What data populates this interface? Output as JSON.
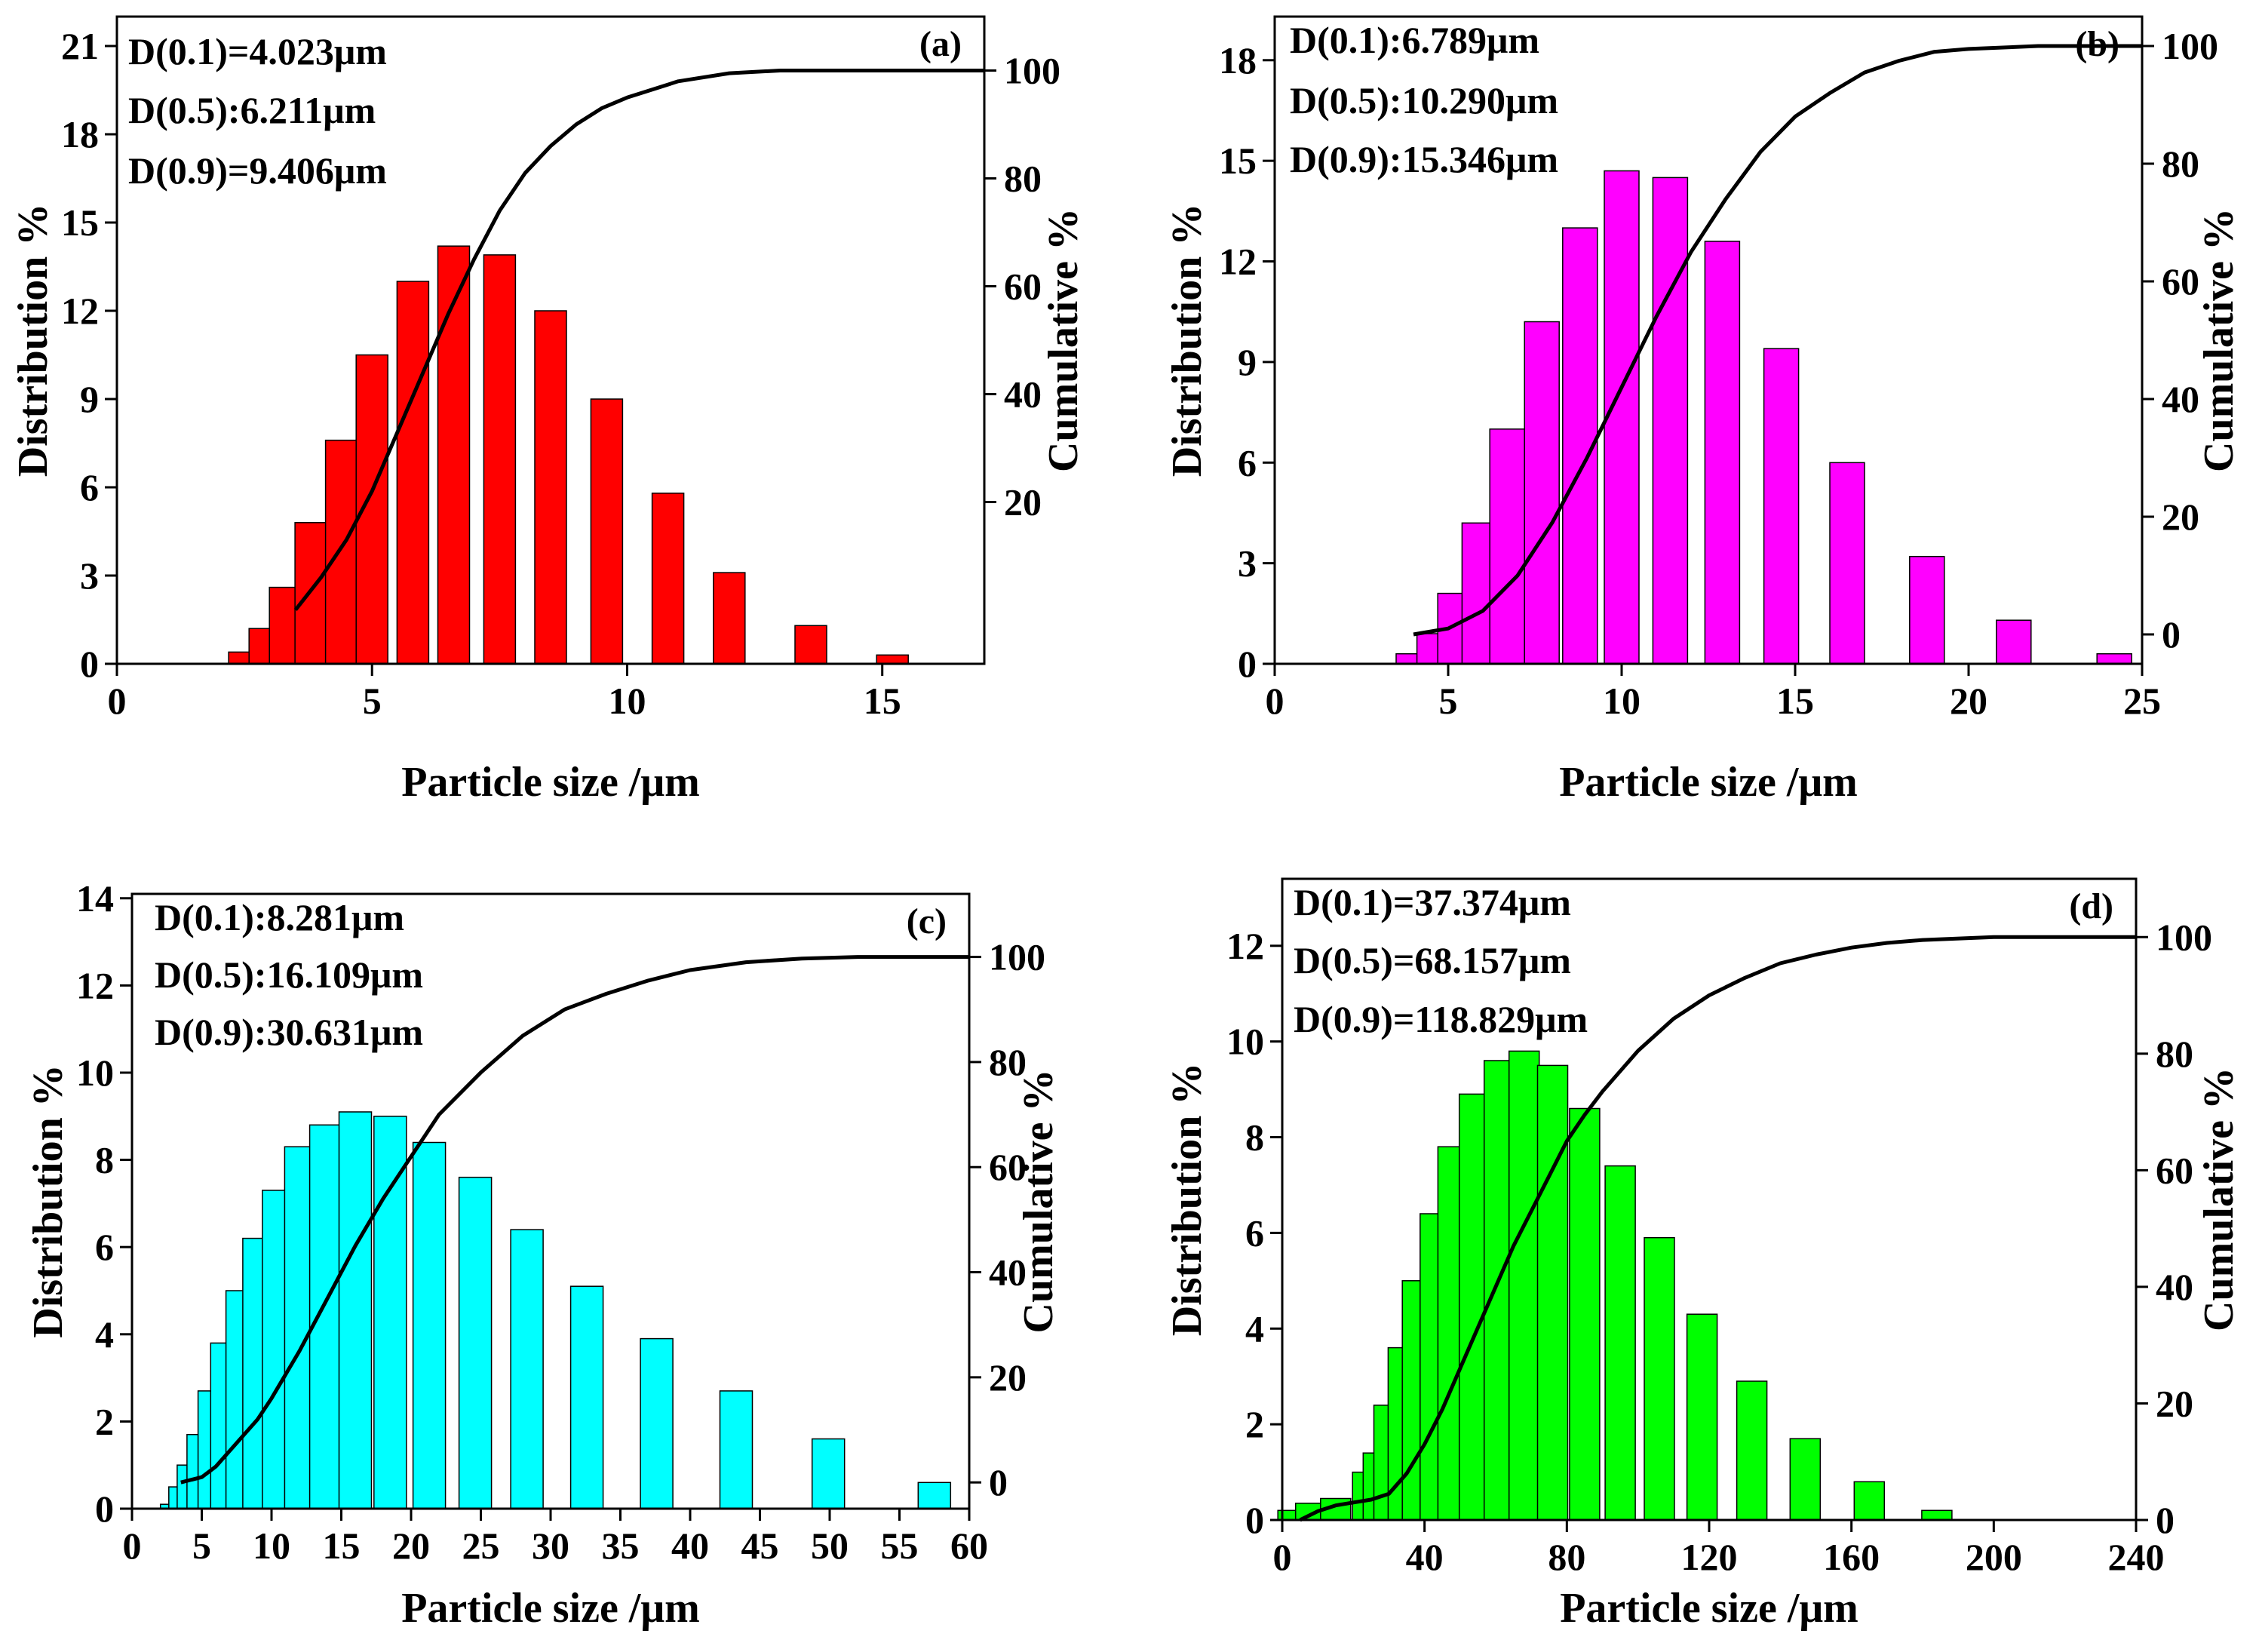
{
  "chart_data": [
    {
      "type": "bar",
      "panel_label": "(a)",
      "annotations": [
        "D(0.1)=4.023μm",
        "D(0.5):6.211μm",
        "D(0.9)=9.406μm"
      ],
      "xlabel": "Particle size /μm",
      "ylabel": "Distribution %",
      "y2label": "Cumulative %",
      "xlim": [
        0,
        17
      ],
      "ylim": [
        0,
        22
      ],
      "y2lim": [
        -10,
        110
      ],
      "xticks": [
        0,
        5,
        10,
        15
      ],
      "yticks": [
        0,
        3,
        6,
        9,
        12,
        15,
        18,
        21
      ],
      "y2ticks": [
        20,
        40,
        60,
        80,
        100
      ],
      "bar_color": "#ff0000",
      "bars": [
        {
          "x": 2.5,
          "value": 0.4
        },
        {
          "x": 2.9,
          "value": 1.2
        },
        {
          "x": 3.3,
          "value": 2.6
        },
        {
          "x": 3.8,
          "value": 4.8
        },
        {
          "x": 4.4,
          "value": 7.6
        },
        {
          "x": 5.0,
          "value": 10.5
        },
        {
          "x": 5.8,
          "value": 13.0
        },
        {
          "x": 6.6,
          "value": 14.2
        },
        {
          "x": 7.5,
          "value": 13.9
        },
        {
          "x": 8.5,
          "value": 12.0
        },
        {
          "x": 9.6,
          "value": 9.0
        },
        {
          "x": 10.8,
          "value": 5.8
        },
        {
          "x": 12.0,
          "value": 3.1
        },
        {
          "x": 13.6,
          "value": 1.3
        },
        {
          "x": 15.2,
          "value": 0.3
        }
      ],
      "cumulative": {
        "x": [
          3.5,
          4.0,
          4.5,
          5.0,
          5.5,
          6.0,
          6.5,
          7.0,
          7.5,
          8.0,
          8.5,
          9.0,
          9.5,
          10.0,
          11.0,
          12.0,
          13.0,
          14.0,
          15.0,
          16.0,
          17.0
        ],
        "y": [
          0,
          6,
          13,
          22,
          33,
          44,
          55,
          65,
          74,
          81,
          86,
          90,
          93,
          95,
          98,
          99.5,
          100,
          100,
          100,
          100,
          100
        ]
      }
    },
    {
      "type": "bar",
      "panel_label": "(b)",
      "annotations": [
        "D(0.1):6.789μm",
        "D(0.5):10.290μm",
        "D(0.9):15.346μm"
      ],
      "xlabel": "Particle size /μm",
      "ylabel": "Distribution %",
      "y2label": "Cumulative %",
      "xlim": [
        0,
        25
      ],
      "ylim": [
        0,
        19.3
      ],
      "y2lim": [
        -5,
        105
      ],
      "xticks": [
        0,
        5,
        10,
        15,
        20,
        25
      ],
      "yticks": [
        0,
        3,
        6,
        9,
        12,
        15,
        18
      ],
      "y2ticks": [
        0,
        20,
        40,
        60,
        80,
        100
      ],
      "bar_color": "#ff00ff",
      "bars": [
        {
          "x": 4.0,
          "value": 0.3
        },
        {
          "x": 4.6,
          "value": 0.9
        },
        {
          "x": 5.2,
          "value": 2.1
        },
        {
          "x": 5.9,
          "value": 4.2
        },
        {
          "x": 6.7,
          "value": 7.0
        },
        {
          "x": 7.7,
          "value": 10.2
        },
        {
          "x": 8.8,
          "value": 13.0
        },
        {
          "x": 10.0,
          "value": 14.7
        },
        {
          "x": 11.4,
          "value": 14.5
        },
        {
          "x": 12.9,
          "value": 12.6
        },
        {
          "x": 14.6,
          "value": 9.4
        },
        {
          "x": 16.5,
          "value": 6.0
        },
        {
          "x": 18.8,
          "value": 3.2
        },
        {
          "x": 21.3,
          "value": 1.3
        },
        {
          "x": 24.2,
          "value": 0.3
        }
      ],
      "cumulative": {
        "x": [
          4,
          5,
          6,
          7,
          8,
          9,
          10,
          11,
          12,
          13,
          14,
          15,
          16,
          17,
          18,
          19,
          20,
          22,
          25
        ],
        "y": [
          0,
          1,
          4,
          10,
          19,
          30,
          42,
          54,
          65,
          74,
          82,
          88,
          92,
          95.5,
          97.5,
          99,
          99.5,
          100,
          100
        ]
      }
    },
    {
      "type": "bar",
      "panel_label": "(c)",
      "annotations": [
        "D(0.1):8.281μm",
        "D(0.5):16.109μm",
        "D(0.9):30.631μm"
      ],
      "xlabel": "Particle size /μm",
      "ylabel": "Distribution %",
      "y2label": "Cumulative %",
      "xlim": [
        0,
        60
      ],
      "ylim": [
        0,
        14.1
      ],
      "y2lim": [
        -5,
        112
      ],
      "xticks": [
        0,
        5,
        10,
        15,
        20,
        25,
        30,
        35,
        40,
        45,
        50,
        55,
        60
      ],
      "yticks": [
        0,
        2,
        4,
        6,
        8,
        10,
        12,
        14
      ],
      "y2ticks": [
        0,
        20,
        40,
        60,
        80,
        100
      ],
      "bar_color": "#00ffff",
      "bars": [
        {
          "x": 3.2,
          "value": 0.1
        },
        {
          "x": 3.8,
          "value": 0.5
        },
        {
          "x": 4.4,
          "value": 1.0
        },
        {
          "x": 5.1,
          "value": 1.7
        },
        {
          "x": 5.9,
          "value": 2.7
        },
        {
          "x": 6.8,
          "value": 3.8
        },
        {
          "x": 7.9,
          "value": 5.0
        },
        {
          "x": 9.1,
          "value": 6.2
        },
        {
          "x": 10.5,
          "value": 7.3
        },
        {
          "x": 12.1,
          "value": 8.3
        },
        {
          "x": 13.9,
          "value": 8.8
        },
        {
          "x": 16.0,
          "value": 9.1
        },
        {
          "x": 18.5,
          "value": 9.0
        },
        {
          "x": 21.3,
          "value": 8.4
        },
        {
          "x": 24.6,
          "value": 7.6
        },
        {
          "x": 28.3,
          "value": 6.4
        },
        {
          "x": 32.6,
          "value": 5.1
        },
        {
          "x": 37.6,
          "value": 3.9
        },
        {
          "x": 43.3,
          "value": 2.7
        },
        {
          "x": 49.9,
          "value": 1.6
        },
        {
          "x": 57.5,
          "value": 0.6
        }
      ],
      "cumulative": {
        "x": [
          3.5,
          5,
          6,
          7,
          8,
          9,
          10,
          12,
          14,
          16,
          18,
          20,
          22,
          25,
          28,
          31,
          34,
          37,
          40,
          44,
          48,
          52,
          56,
          60
        ],
        "y": [
          0,
          1,
          3,
          6,
          9,
          12,
          16,
          25,
          35,
          45,
          54,
          62,
          70,
          78,
          85,
          90,
          93,
          95.5,
          97.5,
          99,
          99.7,
          100,
          100,
          100
        ]
      }
    },
    {
      "type": "bar",
      "panel_label": "(d)",
      "annotations": [
        "D(0.1)=37.374μm",
        "D(0.5)=68.157μm",
        "D(0.9)=118.829μm"
      ],
      "xlabel": "Particle size /μm",
      "ylabel": "Distribution %",
      "y2label": "Cumulative %",
      "xlim": [
        0,
        240
      ],
      "ylim": [
        0,
        13.4
      ],
      "y2lim": [
        0,
        110
      ],
      "xticks": [
        0,
        40,
        80,
        120,
        160,
        200,
        240
      ],
      "yticks": [
        0,
        2,
        4,
        6,
        8,
        10,
        12
      ],
      "y2ticks": [
        0,
        20,
        40,
        60,
        80,
        100
      ],
      "bar_color": "#00ff00",
      "bars": [
        {
          "x": 3,
          "value": 0.2
        },
        {
          "x": 8,
          "value": 0.35
        },
        {
          "x": 15,
          "value": 0.45
        },
        {
          "x": 24,
          "value": 1.0
        },
        {
          "x": 27,
          "value": 1.4
        },
        {
          "x": 30,
          "value": 2.4
        },
        {
          "x": 34,
          "value": 3.6
        },
        {
          "x": 38,
          "value": 5.0
        },
        {
          "x": 43,
          "value": 6.4
        },
        {
          "x": 48,
          "value": 7.8
        },
        {
          "x": 54,
          "value": 8.9
        },
        {
          "x": 61,
          "value": 9.6
        },
        {
          "x": 68,
          "value": 9.8
        },
        {
          "x": 76,
          "value": 9.5
        },
        {
          "x": 85,
          "value": 8.6
        },
        {
          "x": 95,
          "value": 7.4
        },
        {
          "x": 106,
          "value": 5.9
        },
        {
          "x": 118,
          "value": 4.3
        },
        {
          "x": 132,
          "value": 2.9
        },
        {
          "x": 147,
          "value": 1.7
        },
        {
          "x": 165,
          "value": 0.8
        },
        {
          "x": 184,
          "value": 0.2
        }
      ],
      "cumulative": {
        "x": [
          5,
          10,
          15,
          20,
          25,
          30,
          35,
          40,
          45,
          50,
          55,
          60,
          65,
          70,
          75,
          80,
          85,
          90,
          100,
          110,
          120,
          130,
          140,
          150,
          160,
          170,
          180,
          200,
          240
        ],
        "y": [
          0,
          1.5,
          2.5,
          3,
          3.5,
          4.5,
          8,
          13,
          19,
          26,
          33,
          40,
          47,
          53,
          59,
          65,
          69.5,
          73.5,
          80.5,
          86,
          90,
          93,
          95.5,
          97,
          98.2,
          99,
          99.5,
          100,
          100
        ]
      }
    }
  ]
}
